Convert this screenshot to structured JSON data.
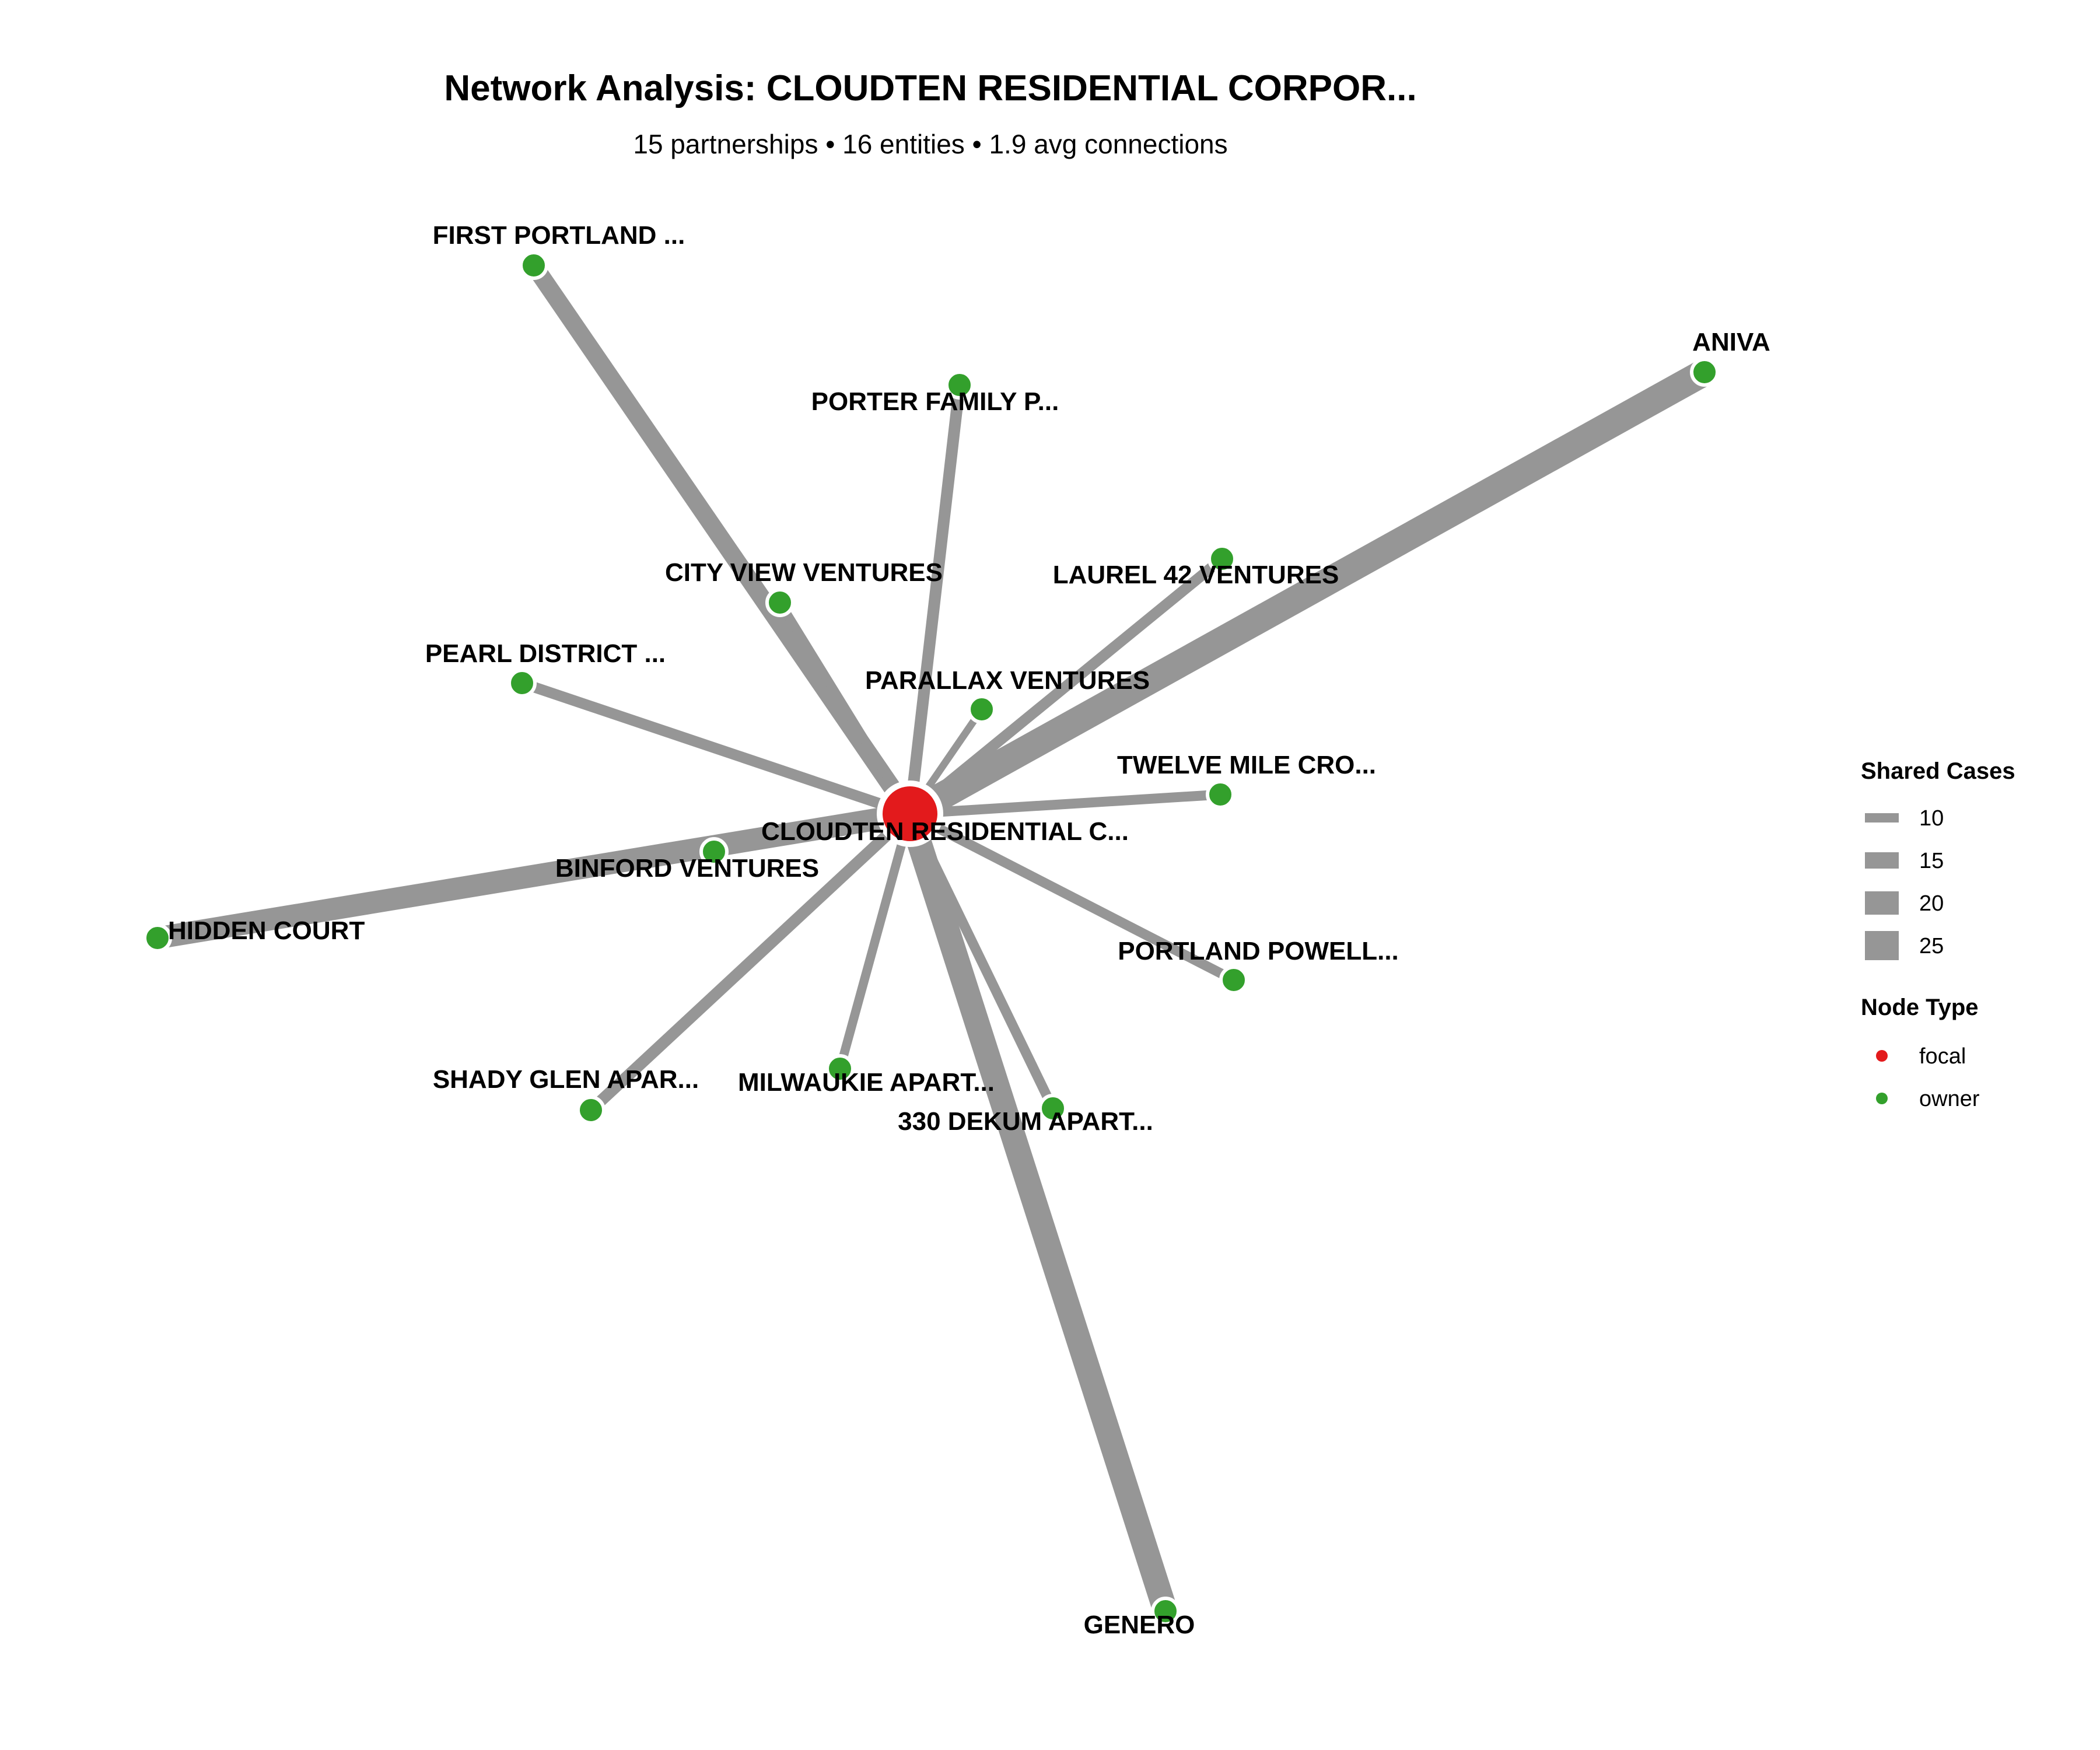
{
  "header": {
    "title": "Network Analysis: CLOUDTEN RESIDENTIAL CORPOR...",
    "subtitle": "15 partnerships • 16 entities • 1.9 avg connections"
  },
  "colors": {
    "focal": "#e31a1c",
    "owner": "#33a02c",
    "edge": "#969696",
    "node_stroke": "#ffffff"
  },
  "chart_data": {
    "type": "network",
    "focal_node": "CLOUDTEN RESIDENTIAL C...",
    "nodes": [
      {
        "id": "CLOUDTEN RESIDENTIAL C...",
        "type": "focal"
      },
      {
        "id": "FIRST PORTLAND ...",
        "type": "owner"
      },
      {
        "id": "PORTER FAMILY P...",
        "type": "owner"
      },
      {
        "id": "ANIVA",
        "type": "owner"
      },
      {
        "id": "CITY VIEW VENTURES",
        "type": "owner"
      },
      {
        "id": "LAUREL 42 VENTURES",
        "type": "owner"
      },
      {
        "id": "PEARL DISTRICT ...",
        "type": "owner"
      },
      {
        "id": "PARALLAX VENTURES",
        "type": "owner"
      },
      {
        "id": "TWELVE MILE CRO...",
        "type": "owner"
      },
      {
        "id": "BINFORD VENTURES",
        "type": "owner"
      },
      {
        "id": "HIDDEN COURT",
        "type": "owner"
      },
      {
        "id": "PORTLAND POWELL...",
        "type": "owner"
      },
      {
        "id": "SHADY GLEN APAR...",
        "type": "owner"
      },
      {
        "id": "MILWAUKIE APART...",
        "type": "owner"
      },
      {
        "id": "330 DEKUM APART...",
        "type": "owner"
      },
      {
        "id": "GENERO",
        "type": "owner"
      }
    ],
    "edges": [
      {
        "target": "ANIVA",
        "shared_cases": 28
      },
      {
        "target": "GENERO",
        "shared_cases": 25
      },
      {
        "target": "HIDDEN COURT",
        "shared_cases": 22
      },
      {
        "target": "FIRST PORTLAND ...",
        "shared_cases": 17
      },
      {
        "target": "PORTER FAMILY P...",
        "shared_cases": 10
      },
      {
        "target": "SHADY GLEN APAR...",
        "shared_cases": 10
      },
      {
        "target": "LAUREL 42 VENTURES",
        "shared_cases": 9
      },
      {
        "target": "PEARL DISTRICT ...",
        "shared_cases": 9
      },
      {
        "target": "TWELVE MILE CRO...",
        "shared_cases": 8
      },
      {
        "target": "330 DEKUM APART...",
        "shared_cases": 8
      },
      {
        "target": "PORTLAND POWELL...",
        "shared_cases": 8
      },
      {
        "target": "MILWAUKIE APART...",
        "shared_cases": 7
      },
      {
        "target": "CITY VIEW VENTURES",
        "shared_cases": 7
      },
      {
        "target": "BINFORD VENTURES",
        "shared_cases": 7
      },
      {
        "target": "PARALLAX VENTURES",
        "shared_cases": 5
      }
    ],
    "legend": {
      "placement": "right",
      "shared_cases_title": "Shared Cases",
      "shared_cases_values": [
        "10",
        "15",
        "20",
        "25"
      ],
      "node_type_title": "Node Type",
      "node_types": [
        "focal",
        "owner"
      ]
    }
  }
}
